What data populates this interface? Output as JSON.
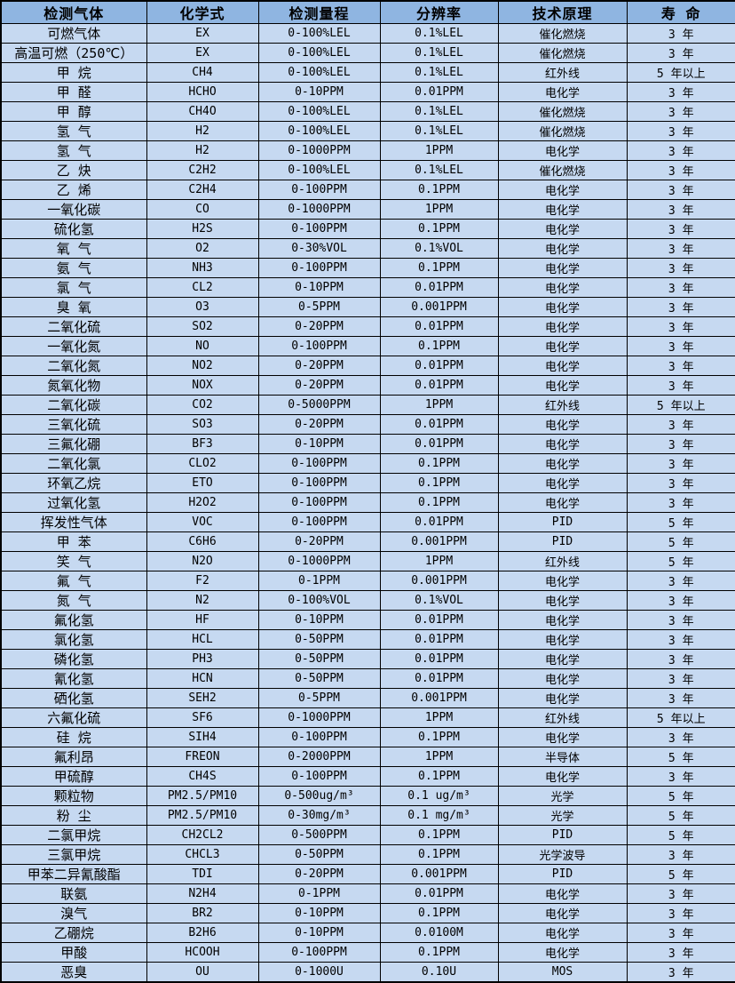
{
  "colors": {
    "header_bg": "#8FB5E1",
    "row_bg": "#C6D9F1",
    "border": "#000000",
    "text": "#000000"
  },
  "table": {
    "columns": [
      "检测气体",
      "化学式",
      "检测量程",
      "分辨率",
      "技术原理",
      "寿  命"
    ],
    "column_keys": [
      "gas",
      "formula",
      "range",
      "resolution",
      "principle",
      "lifespan"
    ],
    "rows": [
      [
        "可燃气体",
        "EX",
        "0-100%LEL",
        "0.1%LEL",
        "催化燃烧",
        "3 年"
      ],
      [
        "高温可燃（250℃）",
        "EX",
        "0-100%LEL",
        "0.1%LEL",
        "催化燃烧",
        "3 年"
      ],
      [
        "甲  烷",
        "CH4",
        "0-100%LEL",
        "0.1%LEL",
        "红外线",
        "5 年以上"
      ],
      [
        "甲  醛",
        "HCHO",
        "0-10PPM",
        "0.01PPM",
        "电化学",
        "3 年"
      ],
      [
        "甲  醇",
        "CH4O",
        "0-100%LEL",
        "0.1%LEL",
        "催化燃烧",
        "3 年"
      ],
      [
        "氢  气",
        "H2",
        "0-100%LEL",
        "0.1%LEL",
        "催化燃烧",
        "3 年"
      ],
      [
        "氢  气",
        "H2",
        "0-1000PPM",
        "1PPM",
        "电化学",
        "3 年"
      ],
      [
        "乙  炔",
        "C2H2",
        "0-100%LEL",
        "0.1%LEL",
        "催化燃烧",
        "3 年"
      ],
      [
        "乙  烯",
        "C2H4",
        "0-100PPM",
        "0.1PPM",
        "电化学",
        "3 年"
      ],
      [
        "一氧化碳",
        "CO",
        "0-1000PPM",
        "1PPM",
        "电化学",
        "3 年"
      ],
      [
        "硫化氢",
        "H2S",
        "0-100PPM",
        "0.1PPM",
        "电化学",
        "3 年"
      ],
      [
        "氧  气",
        "O2",
        "0-30%VOL",
        "0.1%VOL",
        "电化学",
        "3 年"
      ],
      [
        "氨  气",
        "NH3",
        "0-100PPM",
        "0.1PPM",
        "电化学",
        "3 年"
      ],
      [
        "氯  气",
        "CL2",
        "0-10PPM",
        "0.01PPM",
        "电化学",
        "3 年"
      ],
      [
        "臭  氧",
        "O3",
        "0-5PPM",
        "0.001PPM",
        "电化学",
        "3 年"
      ],
      [
        "二氧化硫",
        "SO2",
        "0-20PPM",
        "0.01PPM",
        "电化学",
        "3 年"
      ],
      [
        "一氧化氮",
        "NO",
        "0-100PPM",
        "0.1PPM",
        "电化学",
        "3 年"
      ],
      [
        "二氧化氮",
        "NO2",
        "0-20PPM",
        "0.01PPM",
        "电化学",
        "3 年"
      ],
      [
        "氮氧化物",
        "NOX",
        "0-20PPM",
        "0.01PPM",
        "电化学",
        "3 年"
      ],
      [
        "二氧化碳",
        "CO2",
        "0-5000PPM",
        "1PPM",
        "红外线",
        "5 年以上"
      ],
      [
        "三氧化硫",
        "SO3",
        "0-20PPM",
        "0.01PPM",
        "电化学",
        "3 年"
      ],
      [
        "三氟化硼",
        "BF3",
        "0-10PPM",
        "0.01PPM",
        "电化学",
        "3 年"
      ],
      [
        "二氧化氯",
        "CLO2",
        "0-100PPM",
        "0.1PPM",
        "电化学",
        "3 年"
      ],
      [
        "环氧乙烷",
        "ETO",
        "0-100PPM",
        "0.1PPM",
        "电化学",
        "3 年"
      ],
      [
        "过氧化氢",
        "H2O2",
        "0-100PPM",
        "0.1PPM",
        "电化学",
        "3 年"
      ],
      [
        "挥发性气体",
        "VOC",
        "0-100PPM",
        "0.01PPM",
        "PID",
        "5 年"
      ],
      [
        "甲  苯",
        "C6H6",
        "0-20PPM",
        "0.001PPM",
        "PID",
        "5 年"
      ],
      [
        "笑  气",
        "N2O",
        "0-1000PPM",
        "1PPM",
        "红外线",
        "5 年"
      ],
      [
        "氟  气",
        "F2",
        "0-1PPM",
        "0.001PPM",
        "电化学",
        "3 年"
      ],
      [
        "氮  气",
        "N2",
        "0-100%VOL",
        "0.1%VOL",
        "电化学",
        "3 年"
      ],
      [
        "氟化氢",
        "HF",
        "0-10PPM",
        "0.01PPM",
        "电化学",
        "3 年"
      ],
      [
        "氯化氢",
        "HCL",
        "0-50PPM",
        "0.01PPM",
        "电化学",
        "3 年"
      ],
      [
        "磷化氢",
        "PH3",
        "0-50PPM",
        "0.01PPM",
        "电化学",
        "3 年"
      ],
      [
        "氰化氢",
        "HCN",
        "0-50PPM",
        "0.01PPM",
        "电化学",
        "3 年"
      ],
      [
        "硒化氢",
        "SEH2",
        "0-5PPM",
        "0.001PPM",
        "电化学",
        "3 年"
      ],
      [
        "六氟化硫",
        "SF6",
        "0-1000PPM",
        "1PPM",
        "红外线",
        "5 年以上"
      ],
      [
        "硅  烷",
        "SIH4",
        "0-100PPM",
        "0.1PPM",
        "电化学",
        "3 年"
      ],
      [
        "氟利昂",
        "FREON",
        "0-2000PPM",
        "1PPM",
        "半导体",
        "5 年"
      ],
      [
        "甲硫醇",
        "CH4S",
        "0-100PPM",
        "0.1PPM",
        "电化学",
        "3 年"
      ],
      [
        "颗粒物",
        "PM2.5/PM10",
        "0-500ug/m³",
        "0.1 ug/m³",
        "光学",
        "5 年"
      ],
      [
        "粉  尘",
        "PM2.5/PM10",
        "0-30mg/m³",
        "0.1 mg/m³",
        "光学",
        "5 年"
      ],
      [
        "二氯甲烷",
        "CH2CL2",
        "0-500PPM",
        "0.1PPM",
        "PID",
        "5 年"
      ],
      [
        "三氯甲烷",
        "CHCL3",
        "0-50PPM",
        "0.1PPM",
        "光学波导",
        "3 年"
      ],
      [
        "甲苯二异氰酸酯",
        "TDI",
        "0-20PPM",
        "0.001PPM",
        "PID",
        "5 年"
      ],
      [
        "联氨",
        "N2H4",
        "0-1PPM",
        "0.01PPM",
        "电化学",
        "3 年"
      ],
      [
        "溴气",
        "BR2",
        "0-10PPM",
        "0.1PPM",
        "电化学",
        "3 年"
      ],
      [
        "乙硼烷",
        "B2H6",
        "0-10PPM",
        "0.0100M",
        "电化学",
        "3 年"
      ],
      [
        "甲酸",
        "HCOOH",
        "0-100PPM",
        "0.1PPM",
        "电化学",
        "3 年"
      ],
      [
        "恶臭",
        "OU",
        "0-1000U",
        "0.10U",
        "MOS",
        "3 年"
      ]
    ]
  }
}
